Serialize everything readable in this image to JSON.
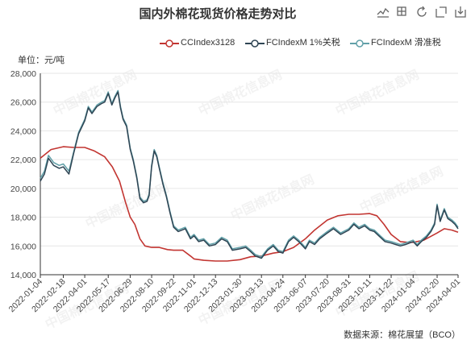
{
  "chart_data": {
    "type": "line",
    "title": "国内外棉花现货价格走势对比",
    "ylabel": "单位：元/吨",
    "ylim": [
      14000,
      28000
    ],
    "yticks": [
      14000,
      16000,
      18000,
      20000,
      22000,
      24000,
      26000,
      28000
    ],
    "ytick_labels": [
      "14,000",
      "16,000",
      "18,000",
      "20,000",
      "22,000",
      "24,000",
      "26,000",
      "28,000"
    ],
    "xlim": [
      "2022-01-04",
      "2024-04-01"
    ],
    "x_tick_labels": [
      "2022-01-04",
      "2022-02-18",
      "2022-04-01",
      "2022-05-17",
      "2022-06-29",
      "2022-08-10",
      "2022-09-22",
      "2022-11-01",
      "2022-12-13",
      "2023-01-30",
      "2023-03-13",
      "2023-04-24",
      "2023-06-07",
      "2023-07-20",
      "2023-08-31",
      "2023-10-11",
      "2023-11-22",
      "2024-01-04",
      "2024-02-20",
      "2024-04-01"
    ],
    "legend_position": "top-right",
    "grid": "horizontal",
    "source": "数据来源：棉花展望（BCO）",
    "series": [
      {
        "name": "CCIndex3128",
        "color": "#c23531",
        "x": [
          "2022-01-04",
          "2022-01-25",
          "2022-02-18",
          "2022-03-10",
          "2022-04-01",
          "2022-04-20",
          "2022-05-10",
          "2022-05-25",
          "2022-06-08",
          "2022-06-20",
          "2022-06-29",
          "2022-07-08",
          "2022-07-18",
          "2022-07-28",
          "2022-08-10",
          "2022-08-25",
          "2022-09-10",
          "2022-09-22",
          "2022-10-10",
          "2022-10-25",
          "2022-11-01",
          "2022-11-20",
          "2022-12-13",
          "2023-01-05",
          "2023-01-30",
          "2023-02-20",
          "2023-03-13",
          "2023-04-05",
          "2023-04-24",
          "2023-05-15",
          "2023-06-07",
          "2023-06-25",
          "2023-07-20",
          "2023-08-10",
          "2023-08-31",
          "2023-09-20",
          "2023-10-11",
          "2023-10-25",
          "2023-11-08",
          "2023-11-22",
          "2023-12-10",
          "2023-12-25",
          "2024-01-04",
          "2024-01-25",
          "2024-02-20",
          "2024-03-05",
          "2024-03-20",
          "2024-04-01"
        ],
        "values": [
          22100,
          22700,
          22900,
          22850,
          22850,
          22600,
          22200,
          21500,
          20500,
          19000,
          18000,
          17500,
          16500,
          16000,
          15900,
          15900,
          15750,
          15700,
          15700,
          15300,
          15100,
          15000,
          14950,
          14950,
          15050,
          15250,
          15300,
          15500,
          15600,
          15900,
          16500,
          17100,
          17800,
          18100,
          18200,
          18200,
          18250,
          18100,
          17500,
          16800,
          16300,
          16250,
          16250,
          16400,
          16900,
          17200,
          17100,
          16950
        ]
      },
      {
        "name": "FCIndexM 1%关税",
        "color": "#2f4554",
        "x": [
          "2022-01-04",
          "2022-01-12",
          "2022-01-20",
          "2022-01-30",
          "2022-02-10",
          "2022-02-18",
          "2022-03-01",
          "2022-03-10",
          "2022-03-20",
          "2022-04-01",
          "2022-04-08",
          "2022-04-15",
          "2022-04-25",
          "2022-05-04",
          "2022-05-10",
          "2022-05-17",
          "2022-05-24",
          "2022-05-30",
          "2022-06-05",
          "2022-06-10",
          "2022-06-15",
          "2022-06-22",
          "2022-06-29",
          "2022-07-05",
          "2022-07-12",
          "2022-07-18",
          "2022-07-25",
          "2022-08-01",
          "2022-08-05",
          "2022-08-10",
          "2022-08-15",
          "2022-08-20",
          "2022-08-25",
          "2022-09-01",
          "2022-09-08",
          "2022-09-15",
          "2022-09-22",
          "2022-10-01",
          "2022-10-15",
          "2022-10-25",
          "2022-11-01",
          "2022-11-10",
          "2022-11-20",
          "2022-12-01",
          "2022-12-13",
          "2022-12-25",
          "2023-01-05",
          "2023-01-15",
          "2023-01-30",
          "2023-02-10",
          "2023-02-20",
          "2023-03-01",
          "2023-03-13",
          "2023-03-25",
          "2023-04-05",
          "2023-04-15",
          "2023-04-24",
          "2023-05-05",
          "2023-05-15",
          "2023-05-25",
          "2023-06-07",
          "2023-06-15",
          "2023-06-25",
          "2023-07-05",
          "2023-07-20",
          "2023-08-01",
          "2023-08-15",
          "2023-08-31",
          "2023-09-10",
          "2023-09-20",
          "2023-10-01",
          "2023-10-11",
          "2023-10-20",
          "2023-11-01",
          "2023-11-10",
          "2023-11-22",
          "2023-12-01",
          "2023-12-10",
          "2023-12-20",
          "2024-01-04",
          "2024-01-12",
          "2024-01-20",
          "2024-01-30",
          "2024-02-08",
          "2024-02-15",
          "2024-02-20",
          "2024-02-26",
          "2024-03-05",
          "2024-03-12",
          "2024-03-20",
          "2024-03-26",
          "2024-04-01"
        ],
        "values": [
          20500,
          21000,
          22100,
          21600,
          21400,
          21500,
          21000,
          22400,
          23800,
          24700,
          25600,
          25200,
          25700,
          25900,
          26000,
          26600,
          25800,
          26300,
          26700,
          25600,
          24800,
          24300,
          22700,
          21900,
          20700,
          19300,
          19000,
          19100,
          19500,
          21500,
          22600,
          22200,
          21400,
          20300,
          19400,
          18300,
          17300,
          17000,
          17200,
          16500,
          16700,
          16300,
          16400,
          16000,
          16100,
          16500,
          16300,
          15700,
          15800,
          15900,
          15600,
          15300,
          15150,
          15700,
          16000,
          15600,
          15500,
          16300,
          16600,
          16300,
          15800,
          16300,
          16100,
          16500,
          16900,
          17200,
          16800,
          17100,
          17500,
          17200,
          17400,
          17100,
          17000,
          16600,
          16300,
          16200,
          16100,
          16000,
          16100,
          16300,
          16000,
          16300,
          16600,
          17000,
          17500,
          18800,
          17700,
          18500,
          17900,
          17700,
          17500,
          17200
        ]
      },
      {
        "name": "FCIndexM 滑准税",
        "color": "#61a0a8",
        "x": [
          "2022-01-04",
          "2022-01-12",
          "2022-01-20",
          "2022-01-30",
          "2022-02-10",
          "2022-02-18",
          "2022-03-01",
          "2022-03-10",
          "2022-03-20",
          "2022-04-01",
          "2022-04-08",
          "2022-04-15",
          "2022-04-25",
          "2022-05-04",
          "2022-05-10",
          "2022-05-17",
          "2022-05-24",
          "2022-05-30",
          "2022-06-05",
          "2022-06-10",
          "2022-06-15",
          "2022-06-22",
          "2022-06-29",
          "2022-07-05",
          "2022-07-12",
          "2022-07-18",
          "2022-07-25",
          "2022-08-01",
          "2022-08-05",
          "2022-08-10",
          "2022-08-15",
          "2022-08-20",
          "2022-08-25",
          "2022-09-01",
          "2022-09-08",
          "2022-09-15",
          "2022-09-22",
          "2022-10-01",
          "2022-10-15",
          "2022-10-25",
          "2022-11-01",
          "2022-11-10",
          "2022-11-20",
          "2022-12-01",
          "2022-12-13",
          "2022-12-25",
          "2023-01-05",
          "2023-01-15",
          "2023-01-30",
          "2023-02-10",
          "2023-02-20",
          "2023-03-01",
          "2023-03-13",
          "2023-03-25",
          "2023-04-05",
          "2023-04-15",
          "2023-04-24",
          "2023-05-05",
          "2023-05-15",
          "2023-05-25",
          "2023-06-07",
          "2023-06-15",
          "2023-06-25",
          "2023-07-05",
          "2023-07-20",
          "2023-08-01",
          "2023-08-15",
          "2023-08-31",
          "2023-09-10",
          "2023-09-20",
          "2023-10-01",
          "2023-10-11",
          "2023-10-20",
          "2023-11-01",
          "2023-11-10",
          "2023-11-22",
          "2023-12-01",
          "2023-12-10",
          "2023-12-20",
          "2024-01-04",
          "2024-01-12",
          "2024-01-20",
          "2024-01-30",
          "2024-02-08",
          "2024-02-15",
          "2024-02-20",
          "2024-02-26",
          "2024-03-05",
          "2024-03-12",
          "2024-03-20",
          "2024-03-26",
          "2024-04-01"
        ],
        "values": [
          20700,
          21200,
          22300,
          21800,
          21600,
          21700,
          21200,
          22500,
          23900,
          24800,
          25700,
          25300,
          25800,
          26000,
          26100,
          26700,
          25900,
          26400,
          26800,
          25700,
          24900,
          24400,
          22800,
          22000,
          20800,
          19400,
          19100,
          19200,
          19600,
          21600,
          22700,
          22300,
          21500,
          20400,
          19500,
          18400,
          17400,
          17100,
          17300,
          16600,
          16800,
          16400,
          16500,
          16100,
          16200,
          16600,
          16400,
          15800,
          15900,
          16000,
          15700,
          15400,
          15250,
          15800,
          16100,
          15700,
          15600,
          16400,
          16700,
          16400,
          15900,
          16400,
          16200,
          16600,
          17000,
          17300,
          16900,
          17200,
          17600,
          17300,
          17500,
          17200,
          17100,
          16700,
          16400,
          16300,
          16200,
          16100,
          16200,
          16400,
          16100,
          16400,
          16700,
          17100,
          17600,
          18900,
          17800,
          18600,
          18000,
          17800,
          17600,
          17300
        ]
      }
    ]
  },
  "toolbar": {
    "tools": [
      {
        "name": "data-view-icon",
        "label": "line chart"
      },
      {
        "name": "zoom-icon",
        "label": "zoom"
      },
      {
        "name": "restore-icon",
        "label": "restore"
      },
      {
        "name": "zoom-reset-icon",
        "label": "reset"
      },
      {
        "name": "save-image-icon",
        "label": "save"
      }
    ],
    "color": "#666666"
  },
  "watermark_text": "中国棉花信息网"
}
